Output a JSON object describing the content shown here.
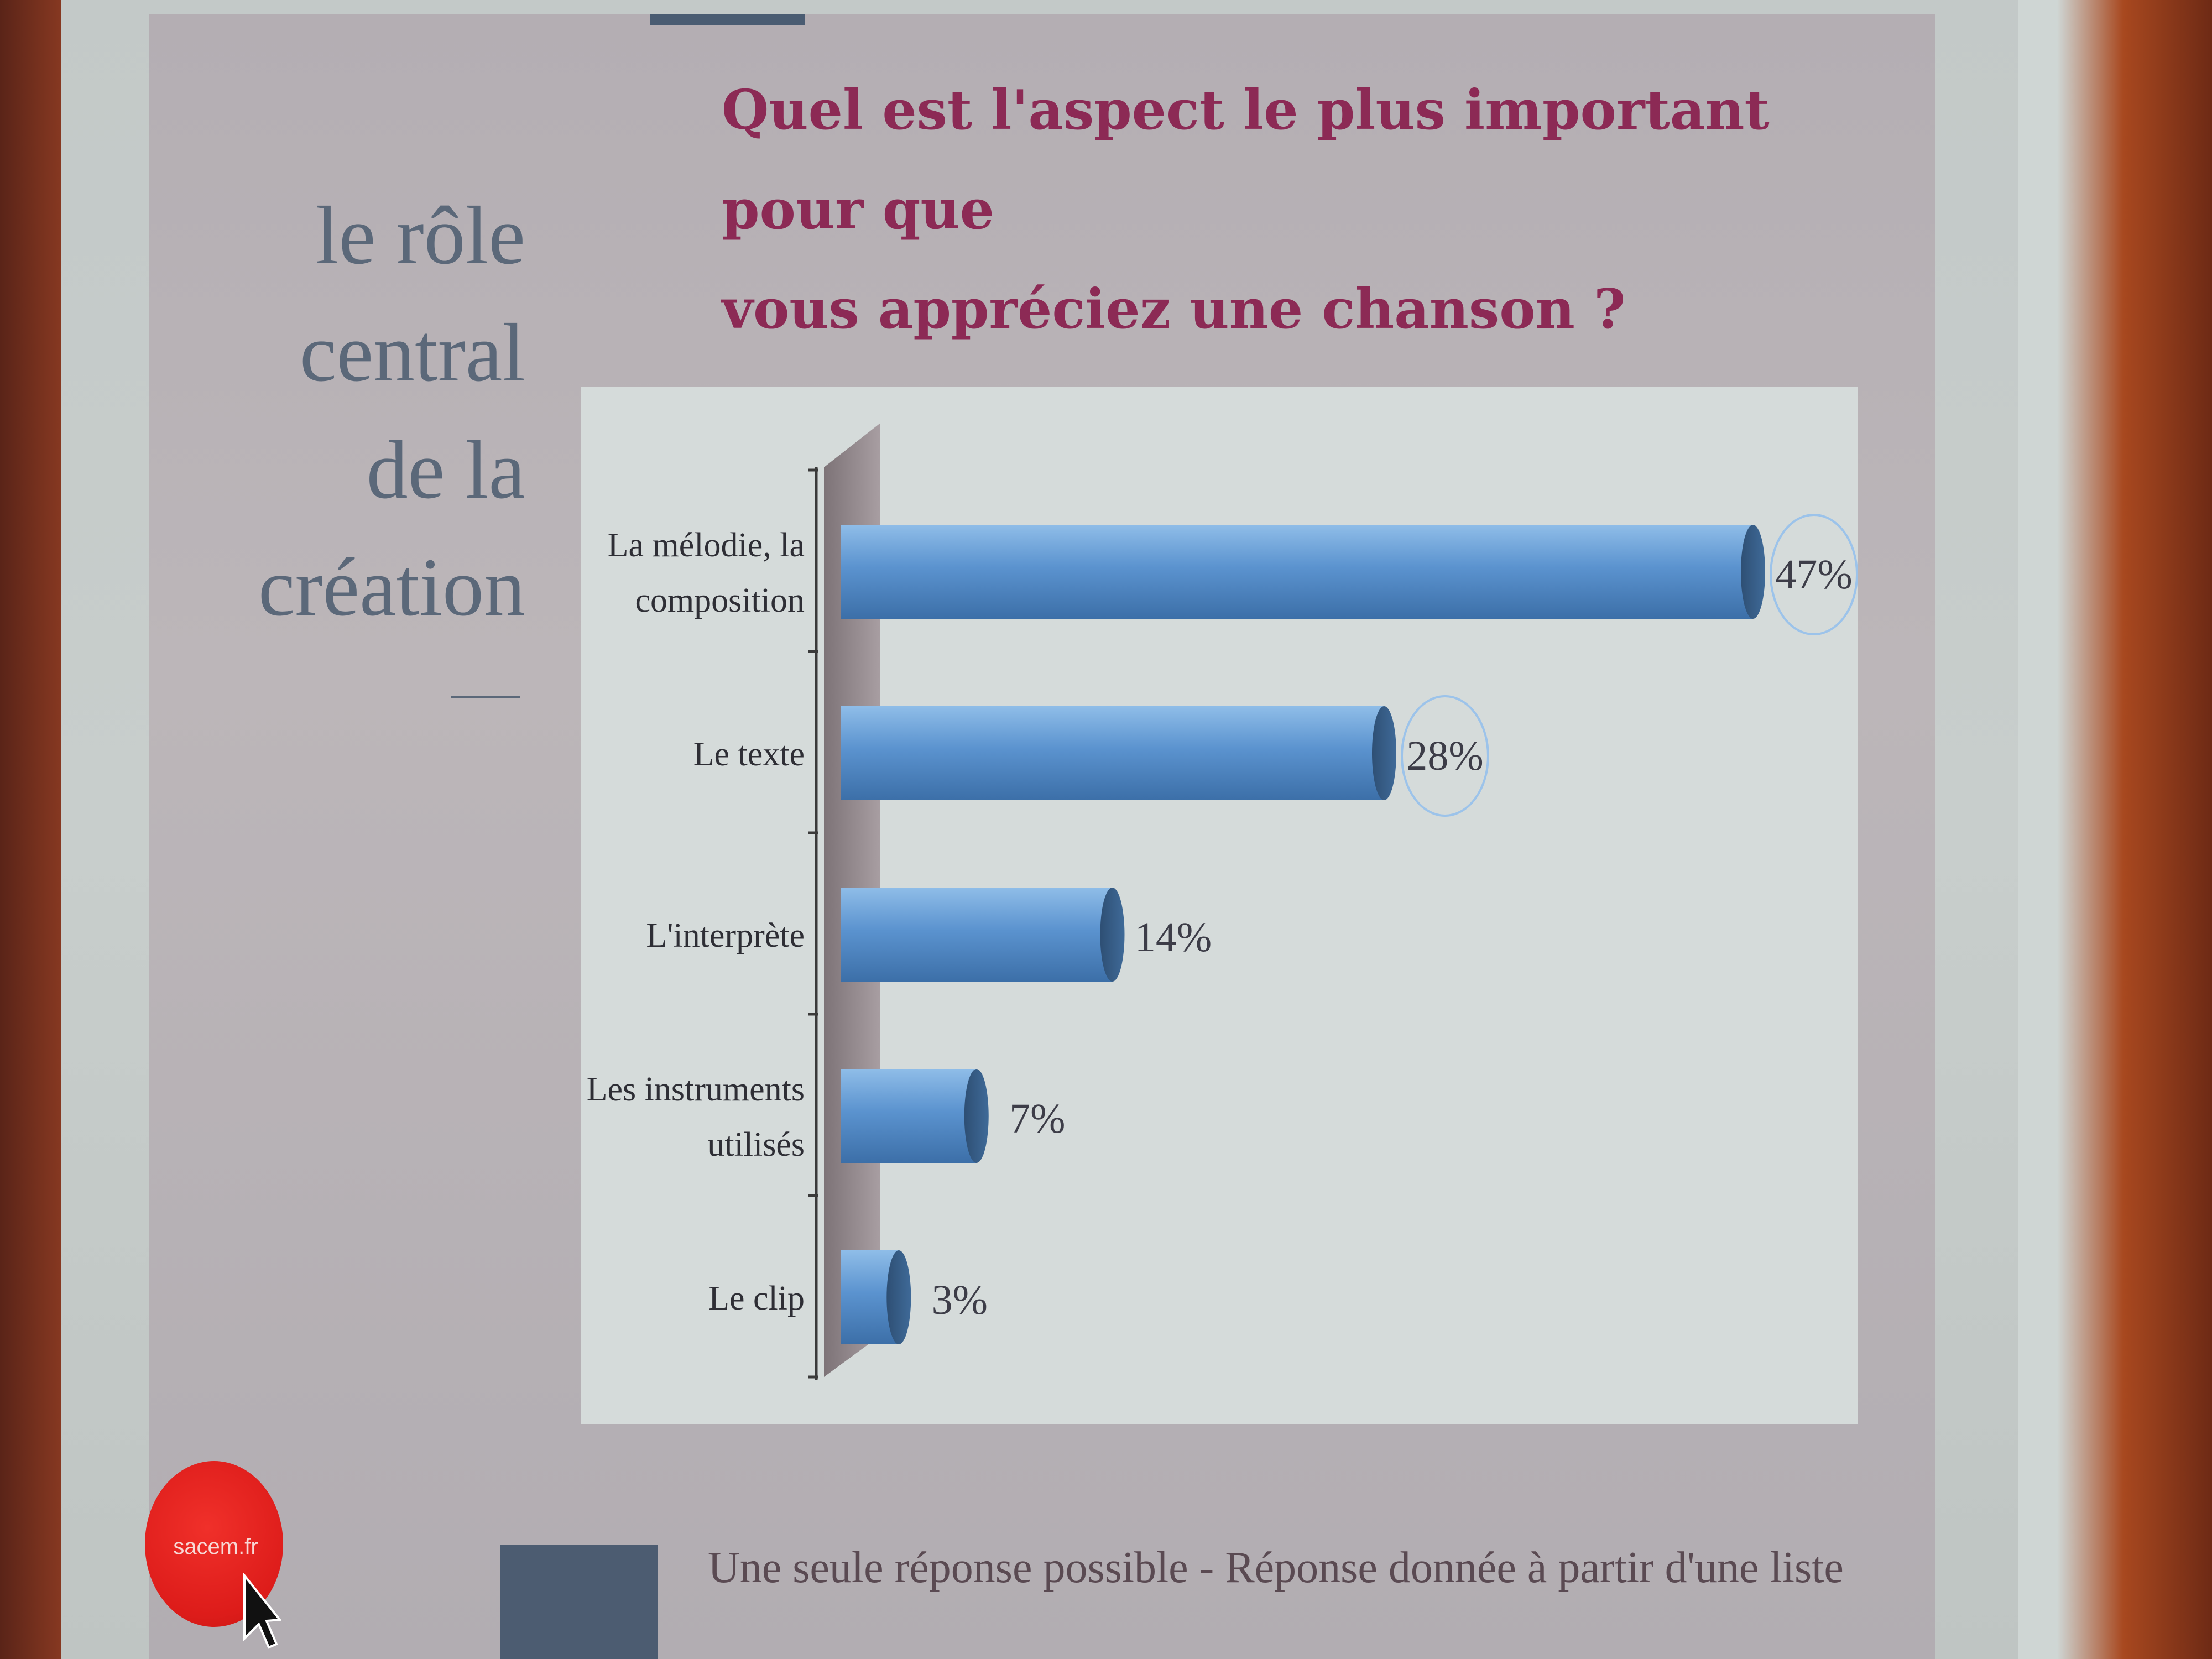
{
  "slide": {
    "side_title": "le rôle\ncentral\nde la\ncréation",
    "logo_text": "sacem.fr",
    "footnote": "Une seule réponse possible - Réponse donnée à partir d'une liste"
  },
  "colors": {
    "bar": "#5b93cf",
    "question": "#8c2a55",
    "logo": "#dd1c1a"
  },
  "icons": {
    "cursor": "mouse-pointer-icon"
  },
  "chart_data": {
    "type": "bar",
    "orientation": "horizontal",
    "title": "Quel est l'aspect le plus important pour que\nvous appréciez une chanson ?",
    "categories": [
      "La mélodie, la composition",
      "Le texte",
      "L'interprète",
      "Les instruments utilisés",
      "Le clip"
    ],
    "category_lines": [
      [
        "La mélodie, la",
        "composition"
      ],
      [
        "Le texte"
      ],
      [
        "L'interprète"
      ],
      [
        "Les instruments",
        "utilisés"
      ],
      [
        "Le clip"
      ]
    ],
    "values": [
      47,
      28,
      14,
      7,
      3
    ],
    "value_labels": [
      "47%",
      "28%",
      "14%",
      "7%",
      "3%"
    ],
    "highlighted": [
      true,
      true,
      false,
      false,
      false
    ],
    "unit": "%",
    "xlim": [
      0,
      47
    ],
    "grid": false,
    "legend": "none",
    "style": "3d-cylinder"
  }
}
